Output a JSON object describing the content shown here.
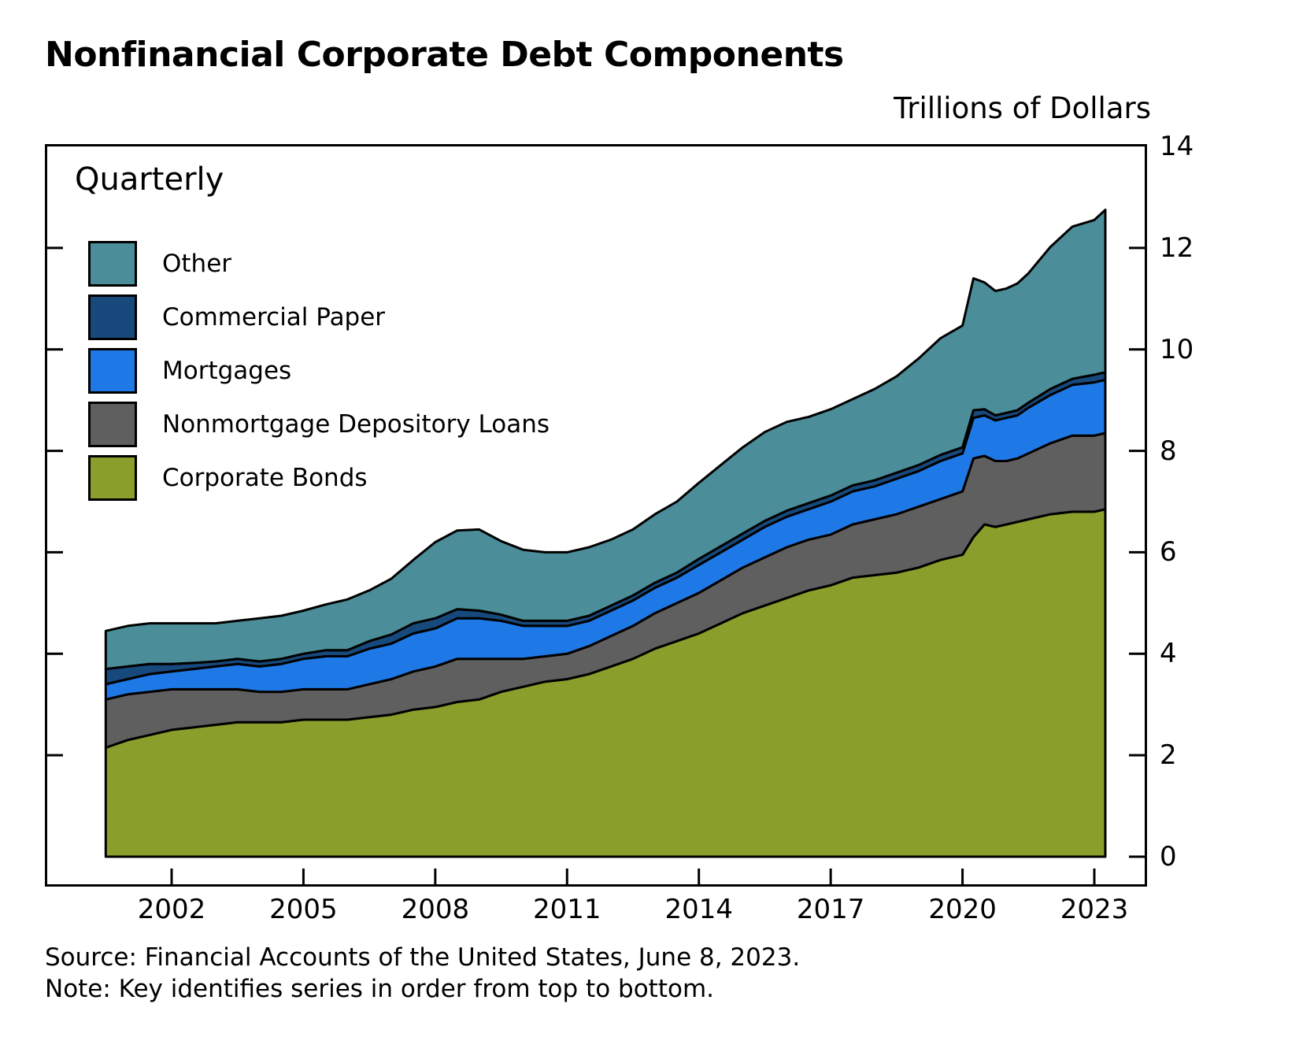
{
  "page": {
    "title": "Nonfinancial Corporate Debt Components",
    "units_label": "Trillions of Dollars",
    "frequency_label": "Quarterly",
    "source": "Source: Financial Accounts of the United States, June 8, 2023.",
    "note": "Note: Key identifies series in order from top to bottom."
  },
  "chart_data": {
    "type": "area",
    "stacked": true,
    "title": "Nonfinancial Corporate Debt Components",
    "ylabel": "Trillions of Dollars",
    "frequency": "Quarterly",
    "ylim": [
      0,
      14
    ],
    "yticks": [
      0,
      2,
      4,
      6,
      8,
      10,
      12,
      14
    ],
    "xticks": [
      2002,
      2005,
      2008,
      2011,
      2014,
      2017,
      2020,
      2023
    ],
    "legend_position": "upper-left",
    "legend_order": [
      "Other",
      "Commercial Paper",
      "Mortgages",
      "Nonmortgage Depository Loans",
      "Corporate Bonds"
    ],
    "line_color": "#000000",
    "x": [
      2000.5,
      2001,
      2001.5,
      2002,
      2002.5,
      2003,
      2003.5,
      2004,
      2004.5,
      2005,
      2005.5,
      2006,
      2006.5,
      2007,
      2007.5,
      2008,
      2008.5,
      2009,
      2009.5,
      2010,
      2010.5,
      2011,
      2011.5,
      2012,
      2012.5,
      2013,
      2013.5,
      2014,
      2014.5,
      2015,
      2015.5,
      2016,
      2016.5,
      2017,
      2017.5,
      2018,
      2018.5,
      2019,
      2019.5,
      2020,
      2020.25,
      2020.5,
      2020.75,
      2021,
      2021.25,
      2021.5,
      2022,
      2022.5,
      2023,
      2023.25
    ],
    "series": [
      {
        "name": "Corporate Bonds",
        "color": "#8a9e2c",
        "values": [
          2.15,
          2.3,
          2.4,
          2.5,
          2.55,
          2.6,
          2.65,
          2.65,
          2.65,
          2.7,
          2.7,
          2.7,
          2.75,
          2.8,
          2.9,
          2.95,
          3.05,
          3.1,
          3.25,
          3.35,
          3.45,
          3.5,
          3.6,
          3.75,
          3.9,
          4.1,
          4.25,
          4.4,
          4.6,
          4.8,
          4.95,
          5.1,
          5.25,
          5.35,
          5.5,
          5.55,
          5.6,
          5.7,
          5.85,
          5.95,
          6.3,
          6.55,
          6.5,
          6.55,
          6.6,
          6.65,
          6.75,
          6.8,
          6.8,
          6.85
        ]
      },
      {
        "name": "Nonmortgage Depository Loans",
        "color": "#5f5f5f",
        "values": [
          0.95,
          0.9,
          0.85,
          0.8,
          0.75,
          0.7,
          0.65,
          0.6,
          0.6,
          0.6,
          0.6,
          0.6,
          0.65,
          0.7,
          0.75,
          0.8,
          0.85,
          0.8,
          0.65,
          0.55,
          0.5,
          0.5,
          0.55,
          0.6,
          0.65,
          0.7,
          0.75,
          0.8,
          0.85,
          0.9,
          0.95,
          1.0,
          1.0,
          1.0,
          1.05,
          1.1,
          1.15,
          1.2,
          1.2,
          1.25,
          1.55,
          1.35,
          1.3,
          1.25,
          1.25,
          1.3,
          1.4,
          1.5,
          1.5,
          1.5
        ]
      },
      {
        "name": "Mortgages",
        "color": "#1e79e6",
        "values": [
          0.3,
          0.3,
          0.35,
          0.35,
          0.4,
          0.45,
          0.5,
          0.5,
          0.55,
          0.6,
          0.65,
          0.65,
          0.7,
          0.7,
          0.75,
          0.75,
          0.8,
          0.8,
          0.75,
          0.65,
          0.6,
          0.55,
          0.5,
          0.5,
          0.5,
          0.5,
          0.5,
          0.55,
          0.55,
          0.55,
          0.6,
          0.6,
          0.6,
          0.65,
          0.65,
          0.65,
          0.7,
          0.7,
          0.75,
          0.75,
          0.8,
          0.8,
          0.8,
          0.85,
          0.85,
          0.9,
          0.95,
          1.0,
          1.05,
          1.05
        ]
      },
      {
        "name": "Commercial Paper",
        "color": "#17497c",
        "values": [
          0.3,
          0.25,
          0.2,
          0.15,
          0.12,
          0.1,
          0.1,
          0.1,
          0.1,
          0.1,
          0.12,
          0.12,
          0.15,
          0.18,
          0.2,
          0.2,
          0.18,
          0.15,
          0.12,
          0.1,
          0.1,
          0.1,
          0.1,
          0.1,
          0.1,
          0.1,
          0.1,
          0.12,
          0.12,
          0.12,
          0.12,
          0.12,
          0.12,
          0.12,
          0.12,
          0.12,
          0.12,
          0.12,
          0.12,
          0.12,
          0.15,
          0.12,
          0.1,
          0.1,
          0.1,
          0.1,
          0.12,
          0.12,
          0.15,
          0.15
        ]
      },
      {
        "name": "Other",
        "color": "#4b8e99",
        "values": [
          0.75,
          0.8,
          0.8,
          0.8,
          0.78,
          0.75,
          0.75,
          0.85,
          0.85,
          0.85,
          0.9,
          1.0,
          1.0,
          1.1,
          1.25,
          1.5,
          1.55,
          1.6,
          1.45,
          1.4,
          1.35,
          1.35,
          1.35,
          1.3,
          1.3,
          1.35,
          1.4,
          1.5,
          1.6,
          1.7,
          1.75,
          1.75,
          1.7,
          1.7,
          1.7,
          1.8,
          1.9,
          2.1,
          2.3,
          2.4,
          2.6,
          2.5,
          2.45,
          2.45,
          2.5,
          2.55,
          2.8,
          3.0,
          3.05,
          3.2
        ]
      }
    ]
  }
}
